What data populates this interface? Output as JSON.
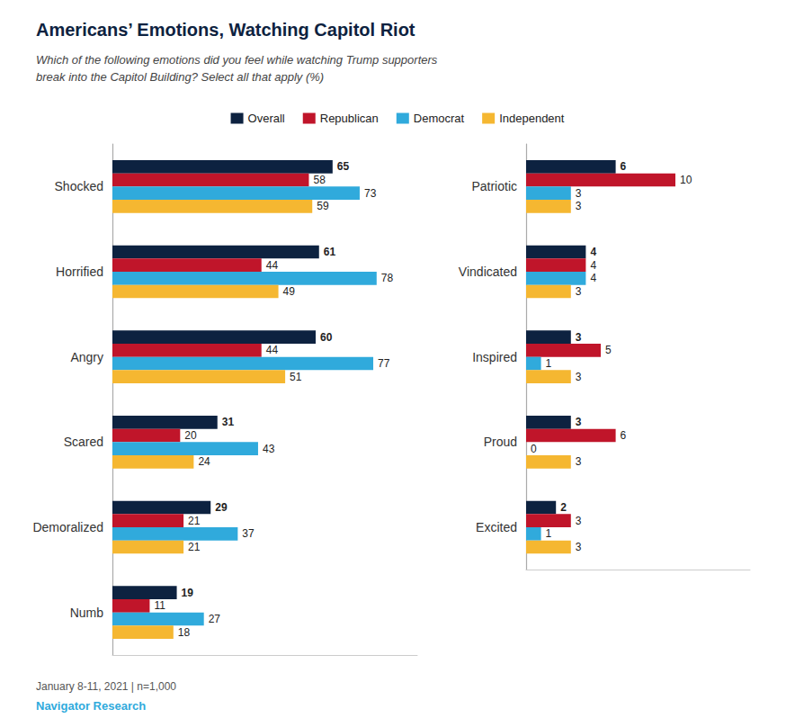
{
  "chart_data": [
    {
      "type": "bar",
      "orientation": "horizontal",
      "title": "Americans’ Emotions, Watching Capitol Riot",
      "subtitle": "Which of the following emotions did you feel while watching Trump supporters\nbreak into the Capitol Building? Select all that apply (%)",
      "annotations": [
        "January 8-11, 2021 | n=1,000",
        "Navigator Research"
      ],
      "categories": [
        "Shocked",
        "Horrified",
        "Angry",
        "Scared",
        "Demoralized",
        "Numb"
      ],
      "series": [
        {
          "name": "Overall",
          "color": "#0d2240",
          "values": [
            65,
            61,
            60,
            31,
            29,
            19
          ]
        },
        {
          "name": "Republican",
          "color": "#c0152a",
          "values": [
            58,
            44,
            44,
            20,
            21,
            11
          ]
        },
        {
          "name": "Democrat",
          "color": "#30aadc",
          "values": [
            73,
            78,
            77,
            43,
            37,
            27
          ]
        },
        {
          "name": "Independent",
          "color": "#f5b731",
          "values": [
            59,
            49,
            51,
            24,
            21,
            18
          ]
        }
      ],
      "xlim": [
        0,
        90
      ],
      "grid": false,
      "legend": "top",
      "data_labels": true,
      "tick_labels": "y"
    },
    {
      "type": "bar",
      "orientation": "horizontal",
      "categories": [
        "Patriotic",
        "Vindicated",
        "Inspired",
        "Proud",
        "Excited"
      ],
      "series": [
        {
          "name": "Overall",
          "color": "#0d2240",
          "values": [
            6,
            4,
            3,
            3,
            2
          ]
        },
        {
          "name": "Republican",
          "color": "#c0152a",
          "values": [
            10,
            4,
            5,
            6,
            3
          ]
        },
        {
          "name": "Democrat",
          "color": "#30aadc",
          "values": [
            3,
            4,
            1,
            0,
            1
          ]
        },
        {
          "name": "Independent",
          "color": "#f5b731",
          "values": [
            3,
            3,
            3,
            3,
            3
          ]
        }
      ],
      "xlim": [
        0,
        15
      ],
      "grid": false,
      "data_labels": true,
      "tick_labels": "y"
    }
  ]
}
